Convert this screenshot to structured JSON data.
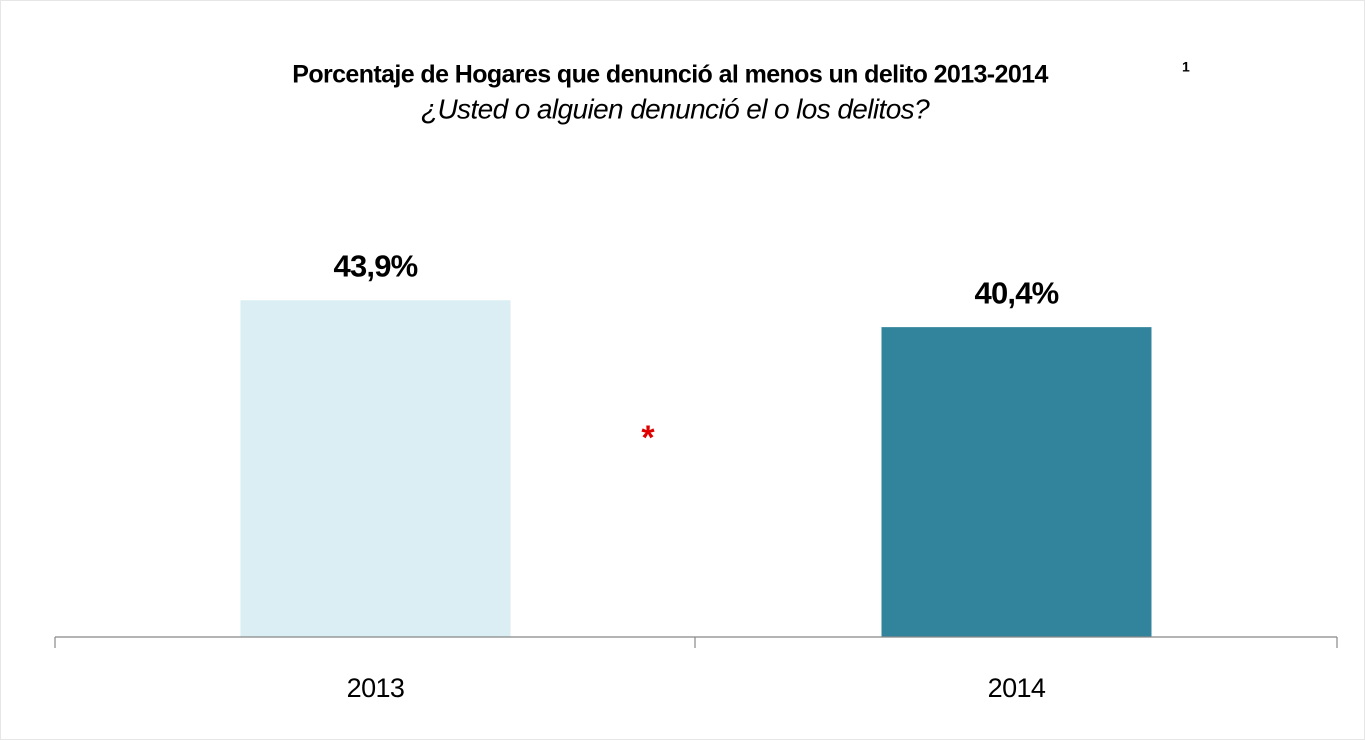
{
  "chart_data": {
    "type": "bar",
    "title": "Porcentaje de Hogares que denunció al menos un delito 2013-2014",
    "title_superscript": "1",
    "subtitle": "¿Usted o alguien denunció el o los delitos?",
    "categories": [
      "2013",
      "2014"
    ],
    "values": [
      43.9,
      40.4
    ],
    "value_labels": [
      "43,9%",
      "40,4%"
    ],
    "colors": [
      "#daeef3",
      "#31849b"
    ],
    "annotation": "*",
    "annotation_color": "#e00000"
  }
}
